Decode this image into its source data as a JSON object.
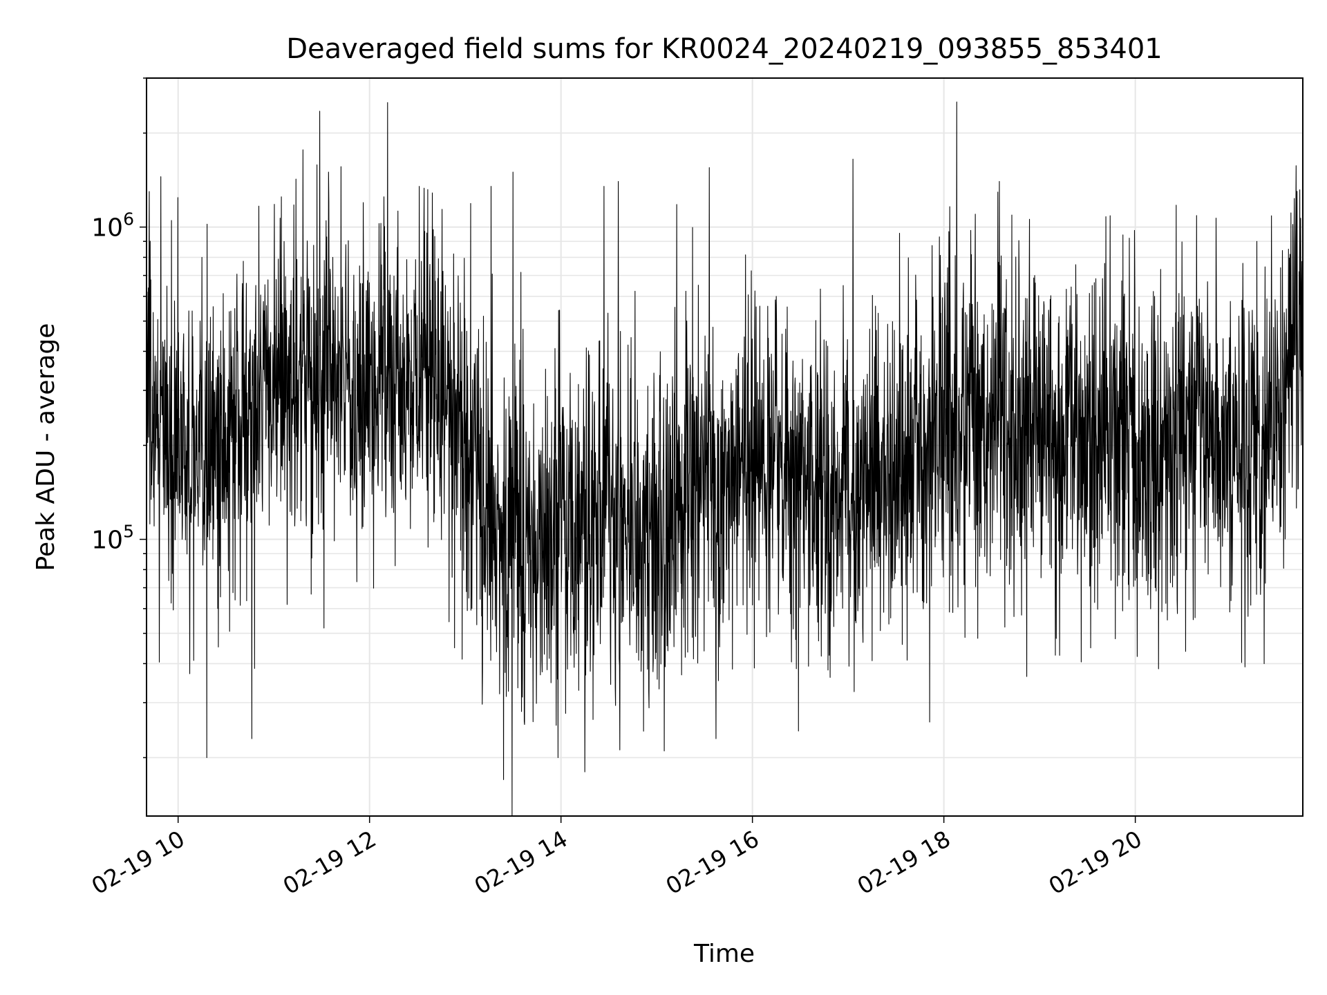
{
  "chart_data": {
    "type": "line",
    "title": "Deaveraged field sums for KR0024_20240219_093855_853401",
    "xlabel": "Time",
    "ylabel": "Peak ADU - average",
    "yscale": "log",
    "ylim": [
      13000,
      3000000
    ],
    "xlim_hours": [
      9.67,
      21.75
    ],
    "x_ticks": [
      {
        "hour": 10,
        "label": "02-19 10"
      },
      {
        "hour": 12,
        "label": "02-19 12"
      },
      {
        "hour": 14,
        "label": "02-19 14"
      },
      {
        "hour": 16,
        "label": "02-19 16"
      },
      {
        "hour": 18,
        "label": "02-19 18"
      },
      {
        "hour": 20,
        "label": "02-19 20"
      }
    ],
    "y_major_ticks": [
      {
        "value": 100000,
        "base": "10",
        "exp": "5"
      },
      {
        "value": 1000000,
        "base": "10",
        "exp": "6"
      }
    ],
    "grid": true,
    "line_color": "#000000",
    "grid_color": "#e6e6e6",
    "series": [
      {
        "name": "Peak ADU - average",
        "baseline": {
          "hours": [
            9.67,
            10.0,
            10.5,
            11.0,
            11.5,
            12.0,
            12.5,
            12.8,
            13.0,
            13.3,
            13.6,
            14.0,
            14.5,
            15.0,
            15.5,
            15.8,
            16.0,
            16.3,
            16.7,
            17.0,
            17.5,
            18.0,
            18.5,
            19.0,
            19.5,
            20.0,
            20.5,
            21.0,
            21.4,
            21.75
          ],
          "values": [
            260000,
            180000,
            200000,
            300000,
            330000,
            300000,
            330000,
            280000,
            170000,
            110000,
            100000,
            105000,
            115000,
            125000,
            135000,
            150000,
            190000,
            180000,
            140000,
            150000,
            160000,
            230000,
            260000,
            220000,
            200000,
            200000,
            210000,
            190000,
            220000,
            450000
          ]
        },
        "spikes": [
          {
            "hour": 9.7,
            "value": 1300000
          },
          {
            "hour": 9.82,
            "value": 1450000
          },
          {
            "hour": 9.93,
            "value": 1050000
          },
          {
            "hour": 10.25,
            "value": 800000
          },
          {
            "hour": 10.3,
            "value": 20000
          },
          {
            "hour": 10.77,
            "value": 23000
          },
          {
            "hour": 11.08,
            "value": 1250000
          },
          {
            "hour": 11.48,
            "value": 2350000
          },
          {
            "hour": 11.57,
            "value": 1500000
          },
          {
            "hour": 12.15,
            "value": 1250000
          },
          {
            "hour": 12.52,
            "value": 1350000
          },
          {
            "hour": 13.27,
            "value": 1350000
          },
          {
            "hour": 13.4,
            "value": 17000
          },
          {
            "hour": 13.5,
            "value": 1500000
          },
          {
            "hour": 13.97,
            "value": 20000
          },
          {
            "hour": 14.25,
            "value": 18000
          },
          {
            "hour": 14.45,
            "value": 1350000
          },
          {
            "hour": 14.6,
            "value": 1400000
          },
          {
            "hour": 15.08,
            "value": 21000
          },
          {
            "hour": 15.55,
            "value": 1550000
          },
          {
            "hour": 15.62,
            "value": 23000
          },
          {
            "hour": 16.25,
            "value": 600000
          },
          {
            "hour": 16.95,
            "value": 650000
          },
          {
            "hour": 17.05,
            "value": 1650000
          },
          {
            "hour": 17.85,
            "value": 26000
          },
          {
            "hour": 18.33,
            "value": 1100000
          },
          {
            "hour": 18.58,
            "value": 1400000
          },
          {
            "hour": 18.95,
            "value": 700000
          },
          {
            "hour": 19.55,
            "value": 650000
          },
          {
            "hour": 19.88,
            "value": 600000
          },
          {
            "hour": 20.2,
            "value": 600000
          },
          {
            "hour": 21.27,
            "value": 900000
          },
          {
            "hour": 21.6,
            "value": 850000
          }
        ]
      }
    ]
  }
}
